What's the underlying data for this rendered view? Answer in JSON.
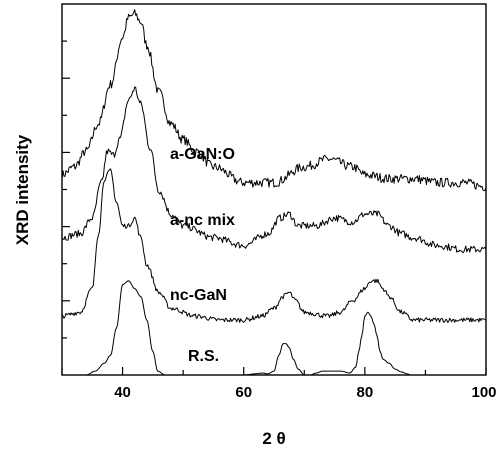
{
  "chart_data": {
    "type": "line",
    "xlabel": "2 θ",
    "ylabel": "XRD intensity",
    "xlim": [
      30,
      100
    ],
    "x_ticks": [
      40,
      60,
      80,
      100
    ],
    "y_tick_labels_shown": false,
    "grid": false,
    "legend": "none",
    "series": [
      {
        "name": "a-GaN:O",
        "x": [
          30,
          32,
          34,
          36,
          38,
          40,
          41,
          42,
          43,
          44,
          46,
          48,
          50,
          52,
          55,
          60,
          65,
          70,
          74,
          78,
          80,
          84,
          88,
          92,
          96,
          100
        ],
        "y": [
          0.51,
          0.53,
          0.57,
          0.64,
          0.74,
          0.86,
          0.91,
          0.92,
          0.9,
          0.84,
          0.72,
          0.64,
          0.6,
          0.57,
          0.53,
          0.49,
          0.49,
          0.53,
          0.55,
          0.53,
          0.51,
          0.5,
          0.5,
          0.49,
          0.49,
          0.48
        ]
      },
      {
        "name": "a-nc mix",
        "x": [
          30,
          33,
          35,
          36.5,
          37.5,
          38.5,
          39.5,
          41,
          42,
          43,
          44.5,
          46,
          48,
          50,
          55,
          60,
          64,
          66,
          67.5,
          69,
          72,
          75,
          78,
          80,
          82,
          84,
          86,
          88,
          92,
          96,
          100
        ],
        "y": [
          0.35,
          0.36,
          0.4,
          0.49,
          0.57,
          0.56,
          0.6,
          0.7,
          0.73,
          0.69,
          0.58,
          0.47,
          0.41,
          0.38,
          0.35,
          0.33,
          0.36,
          0.4,
          0.41,
          0.38,
          0.38,
          0.4,
          0.39,
          0.41,
          0.41,
          0.38,
          0.36,
          0.35,
          0.33,
          0.32,
          0.32
        ]
      },
      {
        "name": "nc-GaN",
        "x": [
          30,
          33,
          35,
          36,
          37,
          38,
          39,
          40,
          41,
          42,
          43,
          44,
          46,
          48,
          52,
          56,
          60,
          63,
          65,
          66.5,
          67.5,
          68.5,
          70,
          74,
          76,
          78,
          80,
          81,
          82,
          83,
          84,
          86,
          88,
          92,
          96,
          100
        ],
        "y": [
          0.15,
          0.16,
          0.22,
          0.36,
          0.5,
          0.52,
          0.44,
          0.38,
          0.38,
          0.4,
          0.35,
          0.28,
          0.21,
          0.17,
          0.15,
          0.14,
          0.14,
          0.15,
          0.17,
          0.2,
          0.21,
          0.19,
          0.16,
          0.15,
          0.16,
          0.19,
          0.22,
          0.24,
          0.24,
          0.22,
          0.2,
          0.16,
          0.14,
          0.14,
          0.14,
          0.14
        ]
      },
      {
        "name": "R.S.",
        "x": [
          30,
          34,
          35.5,
          37,
          38,
          39,
          40,
          41,
          42,
          43,
          44,
          45,
          45.8,
          47,
          50,
          55,
          60,
          62,
          63,
          64,
          65,
          65.8,
          66.5,
          67,
          67.5,
          68.2,
          69,
          70,
          71,
          72,
          73,
          74.5,
          76,
          77.5,
          78.5,
          79,
          79.5,
          80,
          80.5,
          81,
          81.5,
          82,
          82.5,
          83,
          84,
          85,
          86,
          87,
          87.5,
          88,
          92,
          96,
          100
        ],
        "y": [
          0.0,
          0.0,
          0.01,
          0.03,
          0.05,
          0.12,
          0.23,
          0.24,
          0.22,
          0.2,
          0.14,
          0.06,
          0.01,
          0.0,
          0.0,
          0.0,
          0.0,
          0.003,
          0.005,
          0.003,
          0.01,
          0.05,
          0.08,
          0.08,
          0.07,
          0.04,
          0.015,
          0.0,
          0.0,
          0.005,
          0.01,
          0.01,
          0.01,
          0.005,
          0.02,
          0.06,
          0.1,
          0.15,
          0.16,
          0.15,
          0.13,
          0.1,
          0.06,
          0.04,
          0.03,
          0.015,
          0.008,
          0.003,
          0.0,
          0.0,
          0.0,
          0.0,
          0.0
        ]
      }
    ],
    "labels": [
      "a-GaN:O",
      "a-nc mix",
      "nc-GaN",
      "R.S."
    ]
  }
}
